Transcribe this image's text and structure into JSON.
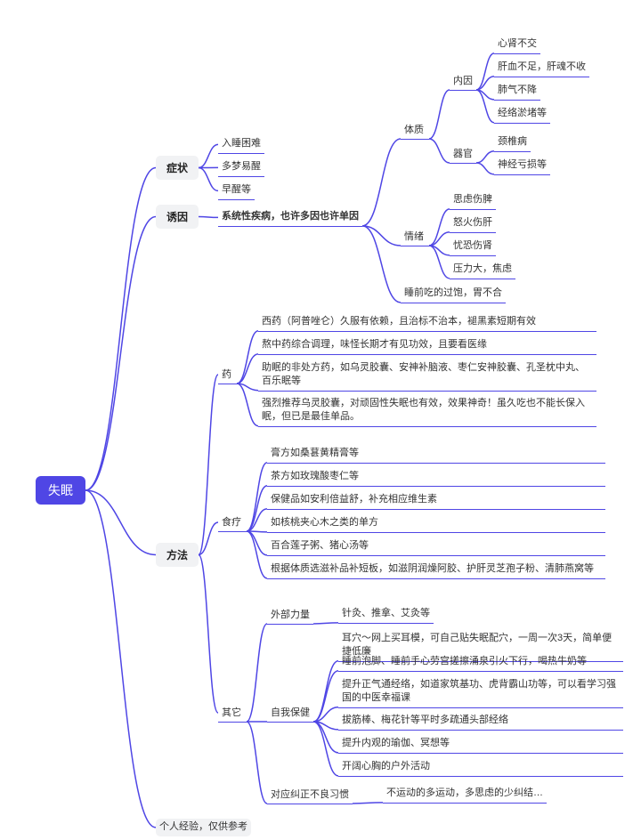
{
  "colors": {
    "line": "#4f46e5",
    "root_bg": "#4f46e5",
    "branch_bg": "#f1f2f4"
  },
  "root": "失眠",
  "b1": {
    "label": "症状",
    "c": [
      "入睡困难",
      "多梦易醒",
      "早醒等"
    ]
  },
  "b2": {
    "label": "诱因",
    "subtitle": "系统性疾病，也许多因也许单因",
    "const": {
      "label": "体质",
      "inner": {
        "label": "内因",
        "items": [
          "心肾不交",
          "肝血不足，肝魂不收",
          "肺气不降",
          "经络淤堵等"
        ]
      },
      "organ": {
        "label": "器官",
        "items": [
          "颈椎病",
          "神经亏损等"
        ]
      }
    },
    "emo": {
      "label": "情绪",
      "items": [
        "思虑伤脾",
        "怒火伤肝",
        "忧恐伤肾",
        "压力大，焦虑"
      ]
    },
    "last": "睡前吃的过饱，胃不合"
  },
  "b3": {
    "label": "方法",
    "med": {
      "label": "药",
      "items": [
        "西药（阿普唑仑）久服有依赖，且治标不治本，褪黑素短期有效",
        "熬中药综合调理，味怪长期才有见功效，且要看医缘",
        "助眠的非处方药，如乌灵胶囊、安神补脑液、枣仁安神胶囊、孔圣枕中丸、百乐眠等",
        "强烈推荐乌灵胶囊，对顽固性失眠也有效，效果神奇！虽久吃也不能长保入眠，但已是最佳单品。"
      ]
    },
    "food": {
      "label": "食疗",
      "items": [
        "膏方如桑葚黄精膏等",
        "茶方如玫瑰酸枣仁等",
        "保健品如安利倍益舒，补充相应维生素",
        "如核桃夹心木之类的单方",
        "百合莲子粥、猪心汤等",
        "根据体质选滋补品补短板，如滋阴润燥阿胶、护肝灵芝孢子粉、清肺燕窝等"
      ]
    },
    "other": {
      "label": "其它",
      "ext": {
        "label": "外部力量",
        "val": "针灸、推拿、艾灸等"
      },
      "self": {
        "label": "自我保健",
        "items": [
          "耳穴～网上买耳模，可自己贴失眠配穴，一周一次3天，简单便捷低廉",
          "睡前泡脚、睡前手心劳宫搓擦涌泉引火下行，喝热牛奶等",
          "提升正气通经络，如道家筑基功、虎背霸山功等，可以看学习强国的中医幸福课",
          "拔筋棒、梅花针等平时多疏通头部经络",
          "提升内观的瑜伽、冥想等",
          "开阔心胸的户外活动"
        ]
      },
      "habit": {
        "label": "对应纠正不良习惯",
        "val": "不运动的多运动，多思虑的少纠结…"
      }
    }
  },
  "b4": {
    "label": "个人经验，仅供参考"
  }
}
